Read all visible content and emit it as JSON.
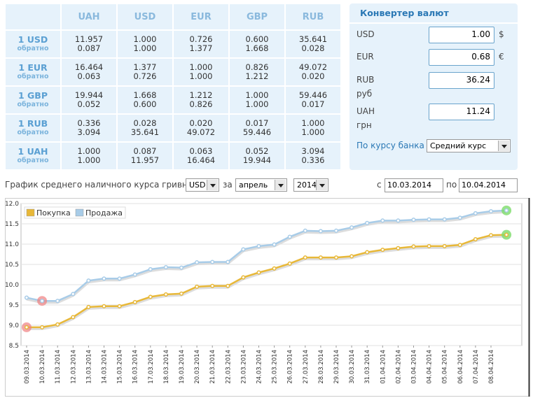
{
  "table": {
    "columns": [
      "UAH",
      "USD",
      "EUR",
      "GBP",
      "RUB"
    ],
    "rows": [
      {
        "label": "1 USD",
        "sub": "обратно",
        "cells": [
          [
            "11.957",
            "0.087"
          ],
          [
            "1.000",
            "1.000"
          ],
          [
            "0.726",
            "1.377"
          ],
          [
            "0.600",
            "1.668"
          ],
          [
            "35.641",
            "0.028"
          ]
        ]
      },
      {
        "label": "1 EUR",
        "sub": "обратно",
        "cells": [
          [
            "16.464",
            "0.063"
          ],
          [
            "1.377",
            "0.726"
          ],
          [
            "1.000",
            "1.000"
          ],
          [
            "0.826",
            "1.212"
          ],
          [
            "49.072",
            "0.020"
          ]
        ]
      },
      {
        "label": "1 GBP",
        "sub": "обратно",
        "cells": [
          [
            "19.944",
            "0.052"
          ],
          [
            "1.668",
            "0.600"
          ],
          [
            "1.212",
            "0.826"
          ],
          [
            "1.000",
            "1.000"
          ],
          [
            "59.446",
            "0.017"
          ]
        ]
      },
      {
        "label": "1 RUB",
        "sub": "обратно",
        "cells": [
          [
            "0.336",
            "3.094"
          ],
          [
            "0.028",
            "35.641"
          ],
          [
            "0.020",
            "49.072"
          ],
          [
            "0.017",
            "59.446"
          ],
          [
            "1.000",
            "1.000"
          ]
        ]
      },
      {
        "label": "1 UAH",
        "sub": "обратно",
        "cells": [
          [
            "1.000",
            "1.000"
          ],
          [
            "0.087",
            "11.957"
          ],
          [
            "0.063",
            "16.464"
          ],
          [
            "0.052",
            "19.944"
          ],
          [
            "3.094",
            "0.336"
          ]
        ]
      }
    ]
  },
  "converter": {
    "title": "Конвертер валют",
    "rows": [
      {
        "code": "USD",
        "value": "1.00",
        "symbol": "$"
      },
      {
        "code": "EUR",
        "value": "0.68",
        "symbol": "€"
      },
      {
        "code": "RUB",
        "sub": "руб",
        "value": "36.24"
      },
      {
        "code": "UAH",
        "sub": "грн",
        "value": "11.24"
      }
    ],
    "rate_label": "По курсу банка",
    "rate_option": "Средний курс"
  },
  "controls": {
    "label": "График среднего наличного курса гривны к",
    "currency": "USD",
    "for": "за",
    "month": "апрель",
    "year": "2014",
    "from_label": "с",
    "from": "10.03.2014",
    "to_label": "по",
    "to": "10.04.2014"
  },
  "chart_data": {
    "type": "line",
    "categories": [
      "09.03.2014",
      "10.03.2014",
      "11.03.2014",
      "12.03.2014",
      "13.03.2014",
      "14.03.2014",
      "15.03.2014",
      "16.03.2014",
      "17.03.2014",
      "18.03.2014",
      "19.03.2014",
      "20.03.2014",
      "21.03.2014",
      "22.03.2014",
      "23.03.2014",
      "24.03.2014",
      "25.03.2014",
      "26.03.2014",
      "27.03.2014",
      "28.03.2014",
      "29.03.2014",
      "30.03.2014",
      "31.03.2014",
      "01.04.2014",
      "02.04.2014",
      "03.04.2014",
      "04.04.2014",
      "05.04.2014",
      "06.04.2014",
      "07.04.2014",
      "08.04.2014",
      null
    ],
    "series": [
      {
        "name": "Покупка",
        "color": "#e8b838",
        "values": [
          8.95,
          8.95,
          9.02,
          9.2,
          9.45,
          9.47,
          9.47,
          9.57,
          9.7,
          9.76,
          9.78,
          9.95,
          9.97,
          9.97,
          10.18,
          10.3,
          10.4,
          10.52,
          10.67,
          10.67,
          10.67,
          10.7,
          10.8,
          10.86,
          10.9,
          10.94,
          10.95,
          10.95,
          10.98,
          11.12,
          11.22,
          11.23
        ]
      },
      {
        "name": "Продажа",
        "color": "#a8cce8",
        "values": [
          9.68,
          9.6,
          9.6,
          9.77,
          10.1,
          10.15,
          10.15,
          10.25,
          10.38,
          10.43,
          10.42,
          10.55,
          10.56,
          10.56,
          10.87,
          10.95,
          10.99,
          11.18,
          11.33,
          11.32,
          11.33,
          11.41,
          11.52,
          11.58,
          11.58,
          11.6,
          11.61,
          11.61,
          11.65,
          11.76,
          11.81,
          11.83
        ]
      }
    ],
    "ylim": [
      8.5,
      12.0
    ],
    "yticks": [
      8.5,
      {
        "value": 9,
        "label": "9.0"
      },
      9.5,
      {
        "value": 10,
        "label": "10.0"
      },
      10.5,
      {
        "value": 11,
        "label": "11.0"
      },
      11.5,
      {
        "value": 12,
        "label": "12.0"
      }
    ],
    "grid": true,
    "legend": "top-left"
  }
}
